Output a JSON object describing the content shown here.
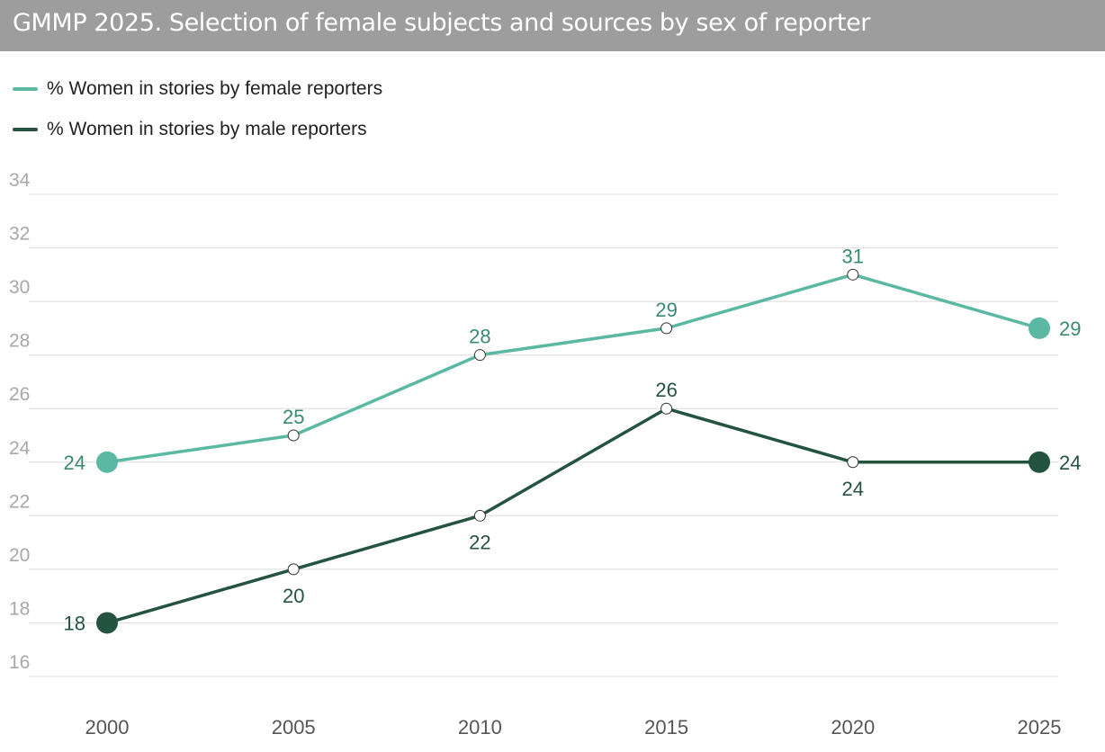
{
  "chart_data": {
    "type": "line",
    "title": "GMMP 2025. Selection of female subjects and sources by sex of reporter",
    "x": [
      "2000",
      "2005",
      "2010",
      "2015",
      "2020",
      "2025"
    ],
    "series": [
      {
        "name": "% Women in stories by female reporters",
        "values": [
          24,
          25,
          28,
          29,
          31,
          29
        ],
        "color": "#5bb8a2",
        "label_color": "#3a8a72",
        "label_positions": [
          "left",
          "above",
          "above",
          "above",
          "above",
          "right"
        ]
      },
      {
        "name": "% Women in stories by male reporters",
        "values": [
          18,
          20,
          22,
          26,
          24,
          24
        ],
        "color": "#24533f",
        "label_color": "#24533f",
        "label_positions": [
          "left",
          "below",
          "below",
          "above",
          "below",
          "right"
        ]
      }
    ],
    "yticks": [
      34,
      32,
      30,
      28,
      26,
      24,
      22,
      20,
      18,
      16
    ],
    "ylim": [
      15.5,
      34
    ],
    "grid": true,
    "legend_position": "top-left",
    "xlabel": "",
    "ylabel": "",
    "colors": {
      "grid": "#e2e2e2",
      "ytick": "#a8a8a8",
      "xtick": "#555555",
      "title_bg": "#9d9d9d"
    }
  }
}
